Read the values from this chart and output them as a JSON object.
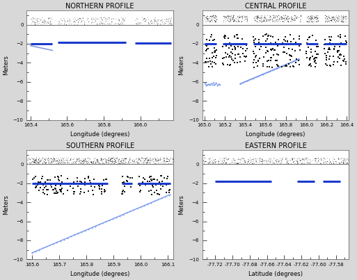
{
  "title_fontsize": 7,
  "axis_label_fontsize": 6,
  "tick_fontsize": 5,
  "figure_facecolor": "#d8d8d8",
  "axes_facecolor": "#ffffff",
  "panels": [
    {
      "title": "NORTHERN PROFILE",
      "xlabel": "Longitude (degrees)",
      "ylabel": "Meters",
      "xlim": [
        165.38,
        166.18
      ],
      "ylim": [
        -10,
        1.5
      ],
      "yticks": [
        0,
        -2,
        -4,
        -6,
        -8,
        -10
      ],
      "xticks": [
        165.4,
        165.6,
        165.8,
        166.0
      ],
      "xtype": "lon",
      "segments": [
        {
          "xmin": 165.4,
          "xmax": 165.52,
          "draft_y": -2.0,
          "platelet_y0": -2.2,
          "platelet_y1": -2.7
        },
        {
          "xmin": 165.55,
          "xmax": 165.92,
          "draft_y": -1.85,
          "platelet_y0": null,
          "platelet_y1": null
        },
        {
          "xmin": 165.97,
          "xmax": 166.17,
          "draft_y": -1.9,
          "platelet_y0": null,
          "platelet_y1": null
        }
      ]
    },
    {
      "title": "CENTRAL PROFILE",
      "xlabel": "Longitude (degrees)",
      "ylabel": "Meters",
      "xlim": [
        164.98,
        166.42
      ],
      "ylim": [
        -10,
        1.5
      ],
      "yticks": [
        0,
        -2,
        -4,
        -6,
        -8,
        -10
      ],
      "xticks": [
        165.0,
        165.2,
        165.4,
        165.6,
        165.8,
        166.0,
        166.2,
        166.4
      ],
      "xtype": "lon",
      "segments": [
        {
          "xmin": 165.0,
          "xmax": 165.12,
          "draft_y": -2.0,
          "platelet_y0": null,
          "platelet_y1": null
        },
        {
          "xmin": 165.18,
          "xmax": 165.42,
          "draft_y": -2.0,
          "platelet_y0": null,
          "platelet_y1": null
        },
        {
          "xmin": 165.48,
          "xmax": 165.95,
          "draft_y": -2.0,
          "platelet_y0": null,
          "platelet_y1": null
        },
        {
          "xmin": 166.0,
          "xmax": 166.12,
          "draft_y": -2.0,
          "platelet_y0": null,
          "platelet_y1": null
        },
        {
          "xmin": 166.18,
          "xmax": 166.4,
          "draft_y": -2.0,
          "platelet_y0": null,
          "platelet_y1": null
        }
      ]
    },
    {
      "title": "SOUTHERN PROFILE",
      "xlabel": "Longitude (degrees)",
      "ylabel": "Meters",
      "xlim": [
        165.58,
        166.12
      ],
      "ylim": [
        -10,
        1.5
      ],
      "yticks": [
        0,
        -2,
        -4,
        -6,
        -8,
        -10
      ],
      "xticks": [
        165.6,
        165.7,
        165.8,
        165.9,
        166.0,
        166.1
      ],
      "xtype": "lon",
      "segments": [
        {
          "xmin": 165.6,
          "xmax": 165.88,
          "draft_y": -2.0,
          "platelet_y0": null,
          "platelet_y1": null
        },
        {
          "xmin": 165.93,
          "xmax": 165.97,
          "draft_y": -2.0,
          "platelet_y0": null,
          "platelet_y1": null
        },
        {
          "xmin": 165.99,
          "xmax": 166.11,
          "draft_y": -2.0,
          "platelet_y0": null,
          "platelet_y1": null
        }
      ]
    },
    {
      "title": "EASTERN PROFILE",
      "xlabel": "Latitude (degrees)",
      "ylabel": "Meters",
      "xlim": [
        -77.735,
        -77.565
      ],
      "ylim": [
        -10,
        1.5
      ],
      "yticks": [
        0,
        -2,
        -4,
        -6,
        -8,
        -10
      ],
      "xticks": [
        -77.72,
        -77.7,
        -77.68,
        -77.66,
        -77.64,
        -77.62,
        -77.6,
        -77.58
      ],
      "xtype": "lat",
      "segments": [
        {
          "xmin": -77.72,
          "xmax": -77.655,
          "draft_y": -1.8,
          "platelet_y0": null,
          "platelet_y1": null
        },
        {
          "xmin": -77.625,
          "xmax": -77.605,
          "draft_y": -1.8,
          "platelet_y0": null,
          "platelet_y1": null
        },
        {
          "xmin": -77.595,
          "xmax": -77.575,
          "draft_y": -1.8,
          "platelet_y0": null,
          "platelet_y1": null
        }
      ]
    }
  ]
}
